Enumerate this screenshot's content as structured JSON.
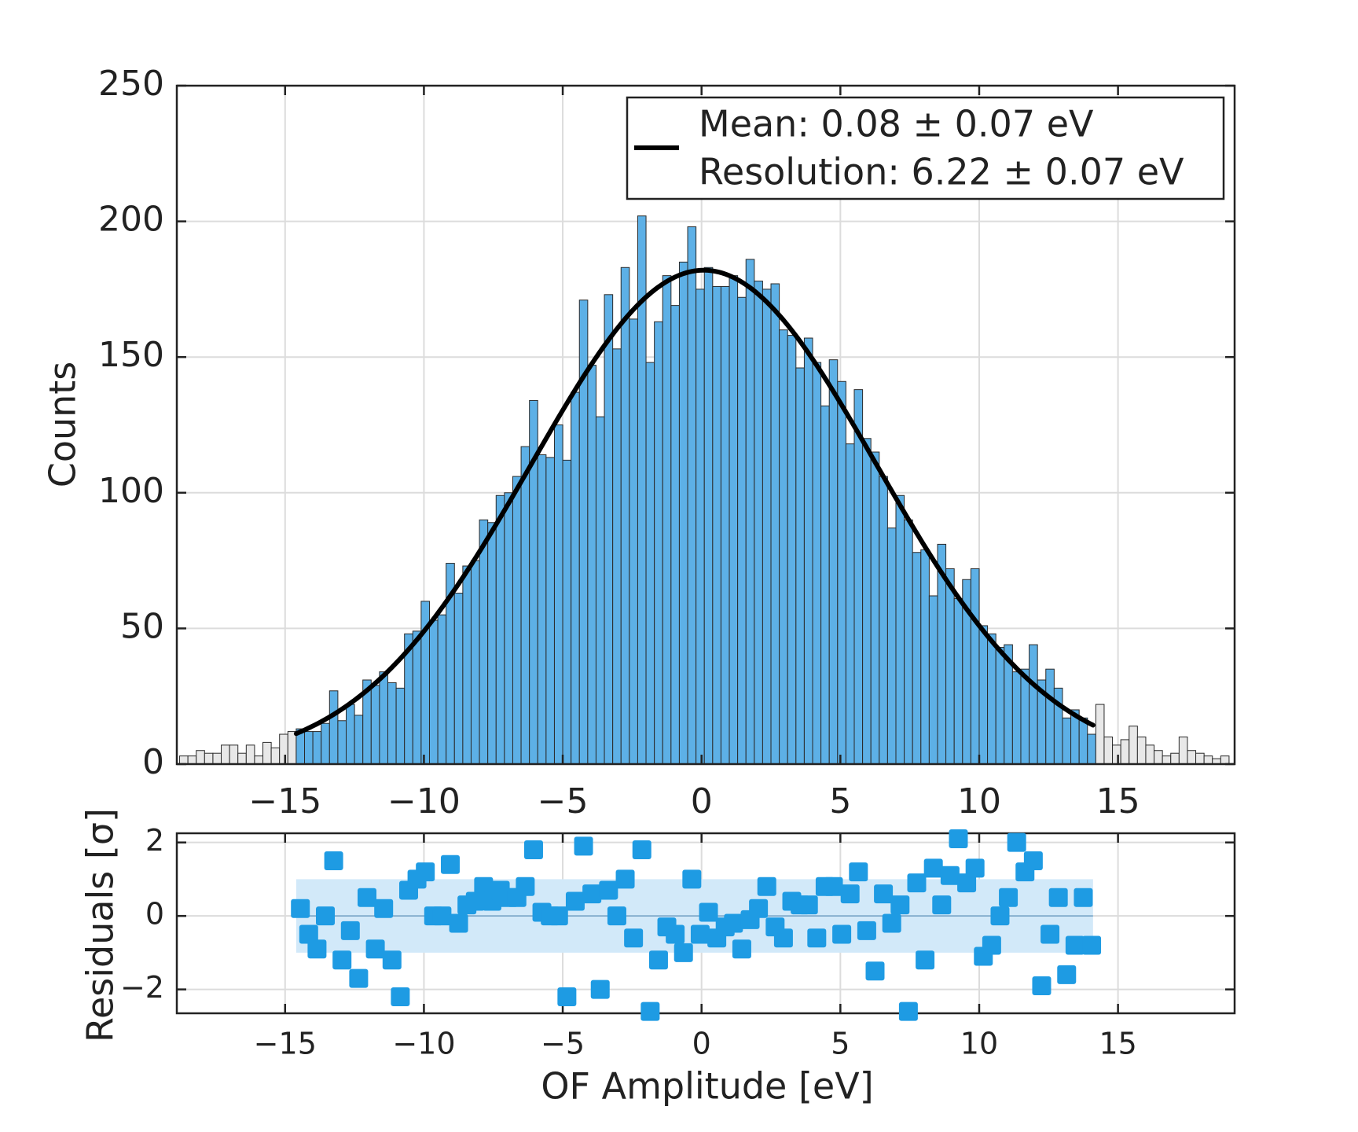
{
  "chart_data": [
    {
      "type": "histogram",
      "ylabel": "Counts",
      "bins": [
        -18.8,
        -18.5,
        -18.2,
        -17.9,
        -17.6,
        -17.3,
        -17,
        -16.7,
        -16.4,
        -16.1,
        -15.8,
        -15.5,
        -15.2,
        -14.9,
        -14.6,
        -14.3,
        -14,
        -13.7,
        -13.4,
        -13.1,
        -12.8,
        -12.5,
        -12.2,
        -11.9,
        -11.6,
        -11.3,
        -11,
        -10.7,
        -10.4,
        -10.1,
        -9.8,
        -9.5,
        -9.2,
        -8.9,
        -8.6,
        -8.3,
        -8,
        -7.7,
        -7.4,
        -7.1,
        -6.8,
        -6.5,
        -6.2,
        -5.9,
        -5.6,
        -5.3,
        -5,
        -4.7,
        -4.4,
        -4.1,
        -3.8,
        -3.5,
        -3.2,
        -2.9,
        -2.6,
        -2.3,
        -2,
        -1.7,
        -1.4,
        -1.1,
        -0.8,
        -0.5,
        -0.2,
        0.1,
        0.4,
        0.7,
        1,
        1.3,
        1.6,
        1.9,
        2.2,
        2.5,
        2.8,
        3.1,
        3.4,
        3.7,
        4,
        4.3,
        4.6,
        4.9,
        5.2,
        5.5,
        5.8,
        6.1,
        6.4,
        6.7,
        7,
        7.3,
        7.6,
        7.9,
        8.2,
        8.5,
        8.8,
        9.1,
        9.4,
        9.7,
        10,
        10.3,
        10.6,
        10.9,
        11.2,
        11.5,
        11.8,
        12.1,
        12.4,
        12.7,
        13,
        13.3,
        13.6,
        13.9,
        14.2,
        14.5,
        14.8,
        15.1,
        15.4,
        15.7,
        16,
        16.3,
        16.6,
        16.9,
        17.2,
        17.5,
        17.8,
        18.1,
        18.4,
        18.7,
        19
      ],
      "values": [
        3,
        3,
        5,
        4,
        4,
        7,
        7,
        4,
        7,
        3,
        8,
        6,
        11,
        12,
        13,
        12,
        12,
        15,
        27,
        16,
        22,
        18,
        31,
        29,
        34,
        30,
        28,
        48,
        49,
        60,
        53,
        55,
        74,
        63,
        73,
        75,
        90,
        89,
        99,
        100,
        106,
        117,
        134,
        114,
        113,
        125,
        112,
        137,
        171,
        147,
        128,
        173,
        153,
        183,
        164,
        202,
        148,
        163,
        180,
        169,
        185,
        198,
        175,
        183,
        176,
        176,
        180,
        172,
        186,
        178,
        175,
        177,
        160,
        158,
        146,
        157,
        148,
        132,
        149,
        141,
        118,
        138,
        120,
        115,
        106,
        87,
        99,
        90,
        78,
        79,
        62,
        81,
        72,
        61,
        68,
        72,
        51,
        48,
        43,
        44,
        34,
        35,
        44,
        31,
        35,
        28,
        17,
        20,
        17,
        11,
        22,
        10,
        7,
        9,
        14,
        10,
        7,
        5,
        3,
        4,
        10,
        5,
        4,
        3,
        2,
        3
      ],
      "color": "#5db0e6",
      "outside_color": "#e8e8e8",
      "edge_color": "#2a2a2a",
      "fit": {
        "amplitude": 182,
        "mean": 0.08,
        "sigma": 6.22,
        "range": [
          -14.6,
          14.1
        ],
        "color": "#000000",
        "label": [
          "Mean: 0.08 ± 0.07 eV",
          "Resolution: 6.22 ± 0.07 eV"
        ]
      },
      "legend": "upper right",
      "xlim": [
        -18.9,
        19.2
      ],
      "ylim": [
        0,
        250
      ],
      "xticks": [
        {
          "value": -15,
          "label": "−15"
        },
        {
          "value": -10,
          "label": "−10"
        },
        {
          "value": -5,
          "label": "−5"
        },
        0,
        5,
        10,
        15
      ],
      "yticks": [
        0,
        50,
        100,
        150,
        200,
        250
      ],
      "grid": true
    },
    {
      "type": "scatter",
      "xlabel": "OF Amplitude [eV]",
      "ylabel": "Residuals [σ]",
      "x": [
        -14.45,
        -14.15,
        -13.85,
        -13.55,
        -13.25,
        -12.95,
        -12.65,
        -12.35,
        -12.05,
        -11.75,
        -11.45,
        -11.15,
        -10.85,
        -10.55,
        -10.25,
        -9.95,
        -9.65,
        -9.35,
        -9.05,
        -8.75,
        -8.45,
        -8.15,
        -7.85,
        -7.55,
        -7.25,
        -6.95,
        -6.65,
        -6.35,
        -6.05,
        -5.75,
        -5.45,
        -5.15,
        -4.85,
        -4.55,
        -4.25,
        -3.95,
        -3.65,
        -3.35,
        -3.05,
        -2.75,
        -2.45,
        -2.15,
        -1.85,
        -1.55,
        -1.25,
        -0.95,
        -0.65,
        -0.35,
        -0.05,
        0.25,
        0.55,
        0.85,
        1.15,
        1.45,
        1.75,
        2.05,
        2.35,
        2.65,
        2.95,
        3.25,
        3.55,
        3.85,
        4.15,
        4.45,
        4.75,
        5.05,
        5.35,
        5.65,
        5.95,
        6.25,
        6.55,
        6.85,
        7.15,
        7.45,
        7.75,
        8.05,
        8.35,
        8.65,
        8.95,
        9.25,
        9.55,
        9.85,
        10.15,
        10.45,
        10.75,
        11.05,
        11.35,
        11.65,
        11.95,
        12.25,
        12.55,
        12.85,
        13.15,
        13.45,
        13.75,
        14.05
      ],
      "y": [
        0.2,
        -0.5,
        -0.9,
        0.0,
        1.5,
        -1.2,
        -0.4,
        -1.7,
        0.5,
        -0.9,
        0.2,
        -1.2,
        -2.2,
        0.7,
        1.0,
        1.2,
        0.0,
        0.0,
        1.4,
        -0.2,
        0.3,
        0.4,
        0.8,
        0.4,
        0.7,
        0.5,
        0.5,
        0.8,
        1.8,
        0.1,
        0.0,
        0.0,
        -2.2,
        0.4,
        1.9,
        0.6,
        -2.0,
        0.7,
        0.0,
        1.0,
        -0.6,
        1.8,
        -2.6,
        -1.2,
        -0.3,
        -0.5,
        -1.0,
        1.0,
        -0.5,
        0.1,
        -0.6,
        -0.3,
        -0.2,
        -0.9,
        -0.1,
        0.2,
        0.8,
        -0.3,
        -0.6,
        0.4,
        0.3,
        0.3,
        -0.6,
        0.8,
        0.8,
        -0.5,
        0.6,
        1.2,
        -0.4,
        -1.5,
        0.6,
        -0.2,
        0.3,
        -2.6,
        0.9,
        -1.2,
        1.3,
        0.3,
        1.1,
        2.1,
        0.9,
        1.3,
        -1.1,
        -0.8,
        0.0,
        0.5,
        2.0,
        1.2,
        1.5,
        -1.9,
        -0.5,
        0.5,
        -1.6,
        -0.8,
        0.5,
        -0.8
      ],
      "color": "#1e9be3",
      "band": {
        "x": [
          -14.6,
          14.1
        ],
        "y": [
          -1,
          1
        ],
        "color": "#d2e9f9"
      },
      "zero_line": {
        "value": 0,
        "color": "#6f9fc2"
      },
      "xlim": [
        -18.9,
        19.2
      ],
      "ylim": [
        -2.65,
        2.25
      ],
      "xticks": [
        {
          "value": -15,
          "label": "−15"
        },
        {
          "value": -10,
          "label": "−10"
        },
        {
          "value": -5,
          "label": "−5"
        },
        0,
        5,
        10,
        15
      ],
      "yticks": [
        {
          "value": -2,
          "label": "−2"
        },
        0,
        2
      ],
      "grid": true
    }
  ]
}
